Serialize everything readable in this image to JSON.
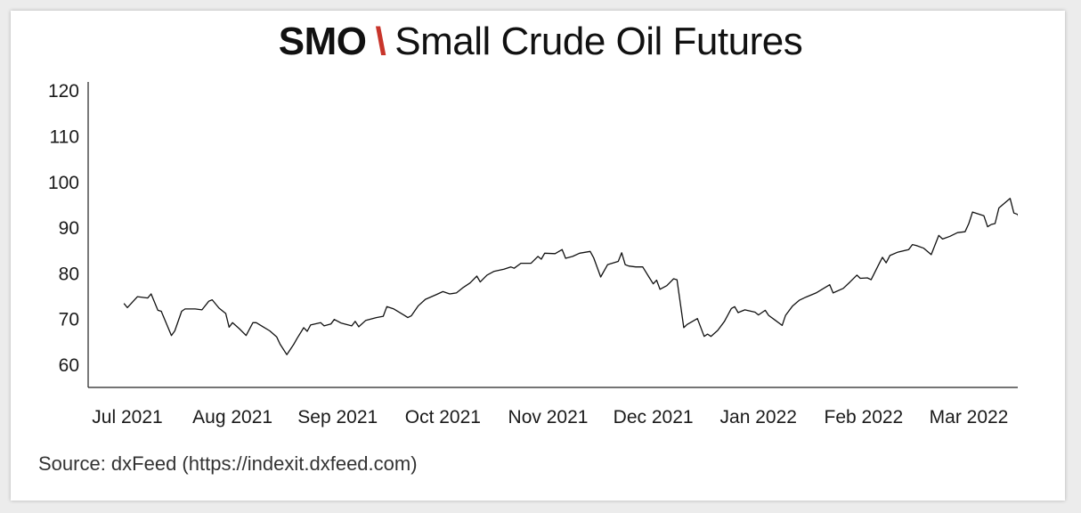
{
  "title": {
    "ticker": "SMO",
    "separator": "\\",
    "name": "Small Crude Oil Futures"
  },
  "source": "Source: dxFeed (https://indexit.dxfeed.com)",
  "colors": {
    "separator": "#c8352b",
    "line": "#111111",
    "text": "#111111"
  },
  "chart_data": {
    "type": "line",
    "title": "SMO \\ Small Crude Oil Futures",
    "xlabel": "",
    "ylabel": "",
    "ylim": [
      55,
      122
    ],
    "yticks": [
      60,
      70,
      80,
      90,
      100,
      110,
      120
    ],
    "xticks": [
      {
        "label": "Jul 2021",
        "date": "2021-07-01"
      },
      {
        "label": "Aug 2021",
        "date": "2021-08-01"
      },
      {
        "label": "Sep 2021",
        "date": "2021-09-01"
      },
      {
        "label": "Oct 2021",
        "date": "2021-10-01"
      },
      {
        "label": "Nov 2021",
        "date": "2021-11-01"
      },
      {
        "label": "Dec 2021",
        "date": "2021-12-01"
      },
      {
        "label": "Jan 2022",
        "date": "2022-01-01"
      },
      {
        "label": "Feb 2022",
        "date": "2022-02-01"
      },
      {
        "label": "Mar 2022",
        "date": "2022-03-01"
      }
    ],
    "xlim": [
      "2021-06-10",
      "2022-03-17"
    ],
    "grid": false,
    "legend": "none",
    "series": [
      {
        "points": [
          [
            "2021-06-30",
            73.5
          ],
          [
            "2021-07-01",
            72.6
          ],
          [
            "2021-07-02",
            73.4
          ],
          [
            "2021-07-04",
            75.0
          ],
          [
            "2021-07-07",
            74.7
          ],
          [
            "2021-07-08",
            75.6
          ],
          [
            "2021-07-10",
            72.0
          ],
          [
            "2021-07-11",
            71.8
          ],
          [
            "2021-07-14",
            66.5
          ],
          [
            "2021-07-15",
            67.5
          ],
          [
            "2021-07-17",
            71.8
          ],
          [
            "2021-07-18",
            72.3
          ],
          [
            "2021-07-21",
            72.3
          ],
          [
            "2021-07-23",
            72.1
          ],
          [
            "2021-07-25",
            74.0
          ],
          [
            "2021-07-26",
            74.3
          ],
          [
            "2021-07-28",
            72.5
          ],
          [
            "2021-07-30",
            71.3
          ],
          [
            "2021-07-31",
            68.3
          ],
          [
            "2021-08-01",
            69.3
          ],
          [
            "2021-08-03",
            68.0
          ],
          [
            "2021-08-05",
            66.5
          ],
          [
            "2021-08-07",
            69.3
          ],
          [
            "2021-08-08",
            69.3
          ],
          [
            "2021-08-10",
            68.4
          ],
          [
            "2021-08-12",
            67.5
          ],
          [
            "2021-08-14",
            66.2
          ],
          [
            "2021-08-15",
            64.6
          ],
          [
            "2021-08-17",
            62.3
          ],
          [
            "2021-08-19",
            64.5
          ],
          [
            "2021-08-20",
            65.8
          ],
          [
            "2021-08-22",
            68.2
          ],
          [
            "2021-08-23",
            67.4
          ],
          [
            "2021-08-24",
            68.8
          ],
          [
            "2021-08-27",
            69.3
          ],
          [
            "2021-08-28",
            68.6
          ],
          [
            "2021-08-30",
            69.0
          ],
          [
            "2021-08-31",
            70.0
          ],
          [
            "2021-09-02",
            69.2
          ],
          [
            "2021-09-05",
            68.6
          ],
          [
            "2021-09-06",
            69.6
          ],
          [
            "2021-09-07",
            68.4
          ],
          [
            "2021-09-09",
            69.8
          ],
          [
            "2021-09-12",
            70.4
          ],
          [
            "2021-09-14",
            70.7
          ],
          [
            "2021-09-15",
            72.8
          ],
          [
            "2021-09-17",
            72.3
          ],
          [
            "2021-09-20",
            70.9
          ],
          [
            "2021-09-21",
            70.4
          ],
          [
            "2021-09-22",
            70.8
          ],
          [
            "2021-09-24",
            73.0
          ],
          [
            "2021-09-26",
            74.4
          ],
          [
            "2021-09-29",
            75.4
          ],
          [
            "2021-10-01",
            76.1
          ],
          [
            "2021-10-03",
            75.6
          ],
          [
            "2021-10-05",
            75.8
          ],
          [
            "2021-10-07",
            77.0
          ],
          [
            "2021-10-09",
            78.0
          ],
          [
            "2021-10-11",
            79.5
          ],
          [
            "2021-10-12",
            78.2
          ],
          [
            "2021-10-14",
            79.7
          ],
          [
            "2021-10-16",
            80.5
          ],
          [
            "2021-10-19",
            81.0
          ],
          [
            "2021-10-21",
            81.5
          ],
          [
            "2021-10-22",
            81.2
          ],
          [
            "2021-10-24",
            82.3
          ],
          [
            "2021-10-27",
            82.3
          ],
          [
            "2021-10-29",
            83.8
          ],
          [
            "2021-10-30",
            83.2
          ],
          [
            "2021-10-31",
            84.5
          ],
          [
            "2021-11-03",
            84.4
          ],
          [
            "2021-11-05",
            85.3
          ],
          [
            "2021-11-06",
            83.4
          ],
          [
            "2021-11-08",
            83.8
          ],
          [
            "2021-11-10",
            84.5
          ],
          [
            "2021-11-13",
            84.9
          ],
          [
            "2021-11-14",
            83.5
          ],
          [
            "2021-11-16",
            79.3
          ],
          [
            "2021-11-18",
            82.0
          ],
          [
            "2021-11-21",
            82.7
          ],
          [
            "2021-11-22",
            84.6
          ],
          [
            "2021-11-23",
            82.0
          ],
          [
            "2021-11-24",
            81.7
          ],
          [
            "2021-11-26",
            81.5
          ],
          [
            "2021-11-28",
            81.5
          ],
          [
            "2021-11-30",
            79.0
          ],
          [
            "2021-12-01",
            77.8
          ],
          [
            "2021-12-02",
            78.6
          ],
          [
            "2021-12-03",
            76.6
          ],
          [
            "2021-12-05",
            77.4
          ],
          [
            "2021-12-07",
            78.9
          ],
          [
            "2021-12-08",
            78.7
          ],
          [
            "2021-12-10",
            68.2
          ],
          [
            "2021-12-11",
            68.9
          ],
          [
            "2021-12-14",
            70.2
          ],
          [
            "2021-12-16",
            66.3
          ],
          [
            "2021-12-17",
            66.8
          ],
          [
            "2021-12-18",
            66.3
          ],
          [
            "2021-12-20",
            67.6
          ],
          [
            "2021-12-22",
            69.6
          ],
          [
            "2021-12-24",
            72.4
          ],
          [
            "2021-12-25",
            72.8
          ],
          [
            "2021-12-26",
            71.5
          ],
          [
            "2021-12-28",
            72.1
          ],
          [
            "2021-12-31",
            71.6
          ],
          [
            "2022-01-01",
            71.0
          ],
          [
            "2022-01-03",
            72.0
          ],
          [
            "2022-01-04",
            70.9
          ],
          [
            "2022-01-06",
            69.8
          ],
          [
            "2022-01-08",
            68.7
          ],
          [
            "2022-01-09",
            70.9
          ],
          [
            "2022-01-11",
            72.9
          ],
          [
            "2022-01-13",
            74.2
          ],
          [
            "2022-01-15",
            74.9
          ],
          [
            "2022-01-18",
            75.8
          ],
          [
            "2022-01-20",
            76.7
          ],
          [
            "2022-01-22",
            77.6
          ],
          [
            "2022-01-23",
            75.8
          ],
          [
            "2022-01-26",
            76.8
          ],
          [
            "2022-01-28",
            78.2
          ],
          [
            "2022-01-30",
            79.7
          ],
          [
            "2022-01-31",
            79.0
          ],
          [
            "2022-02-02",
            79.1
          ],
          [
            "2022-02-03",
            78.7
          ],
          [
            "2022-02-05",
            82.0
          ],
          [
            "2022-02-06",
            83.6
          ],
          [
            "2022-02-07",
            82.4
          ],
          [
            "2022-02-08",
            84.0
          ],
          [
            "2022-02-10",
            84.7
          ],
          [
            "2022-02-13",
            85.3
          ],
          [
            "2022-02-14",
            86.4
          ],
          [
            "2022-02-15",
            86.2
          ],
          [
            "2022-02-17",
            85.6
          ],
          [
            "2022-02-19",
            84.2
          ],
          [
            "2022-02-21",
            88.4
          ],
          [
            "2022-02-22",
            87.6
          ],
          [
            "2022-02-24",
            88.2
          ],
          [
            "2022-02-26",
            89.0
          ],
          [
            "2022-02-28",
            89.2
          ],
          [
            "2022-03-01",
            91.0
          ],
          [
            "2022-03-02",
            93.5
          ],
          [
            "2022-03-05",
            92.7
          ],
          [
            "2022-03-06",
            90.3
          ],
          [
            "2022-03-07",
            90.8
          ],
          [
            "2022-03-08",
            91.0
          ],
          [
            "2022-03-09",
            94.4
          ],
          [
            "2022-03-12",
            96.5
          ],
          [
            "2022-03-13",
            93.3
          ],
          [
            "2022-03-14",
            93.0
          ],
          [
            "2022-03-15",
            91.0
          ],
          [
            "2022-03-16",
            91.5
          ],
          [
            "2022-03-17",
            92.1
          ]
        ]
      }
    ]
  }
}
